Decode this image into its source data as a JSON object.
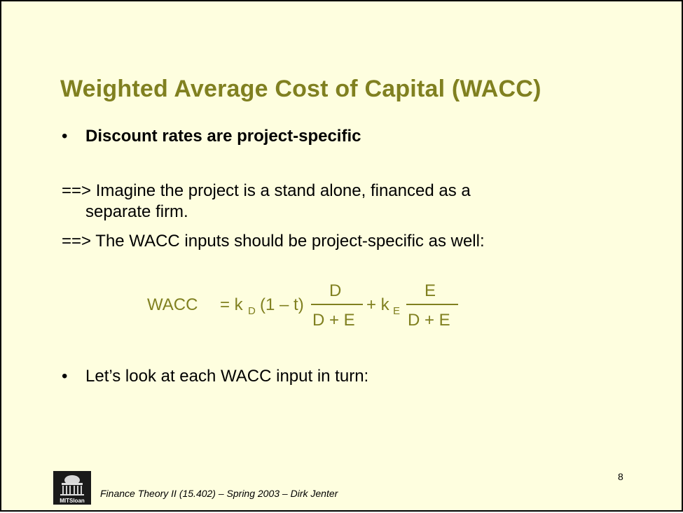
{
  "title": "Weighted Average Cost of Capital (WACC)",
  "bullets": [
    {
      "marker": "•",
      "text": "Discount rates are project-specific"
    },
    {
      "marker": "•",
      "text": "Let’s look at each WACC input in turn:"
    }
  ],
  "paragraphs": [
    {
      "line1": "==> Imagine the project is a stand alone, financed as a",
      "line2": "separate firm."
    },
    {
      "line1": "==> The WACC inputs should be project-specific as well:"
    }
  ],
  "formula": {
    "lhs": "WACC",
    "eq_k": "= k",
    "sub_d": "D",
    "paren": "(1 – t)",
    "num1": "D",
    "den1": "D + E",
    "plus_k": "+ k",
    "sub_e": "E",
    "num2": "E",
    "den2": "D + E"
  },
  "page_number": "8",
  "footer": "Finance Theory II (15.402) – Spring 2003 – Dirk Jenter",
  "logo": {
    "text": "MITSloan"
  },
  "colors": {
    "background": "#fefedf",
    "title": "#808020",
    "formula": "#808020",
    "text": "#000000"
  }
}
